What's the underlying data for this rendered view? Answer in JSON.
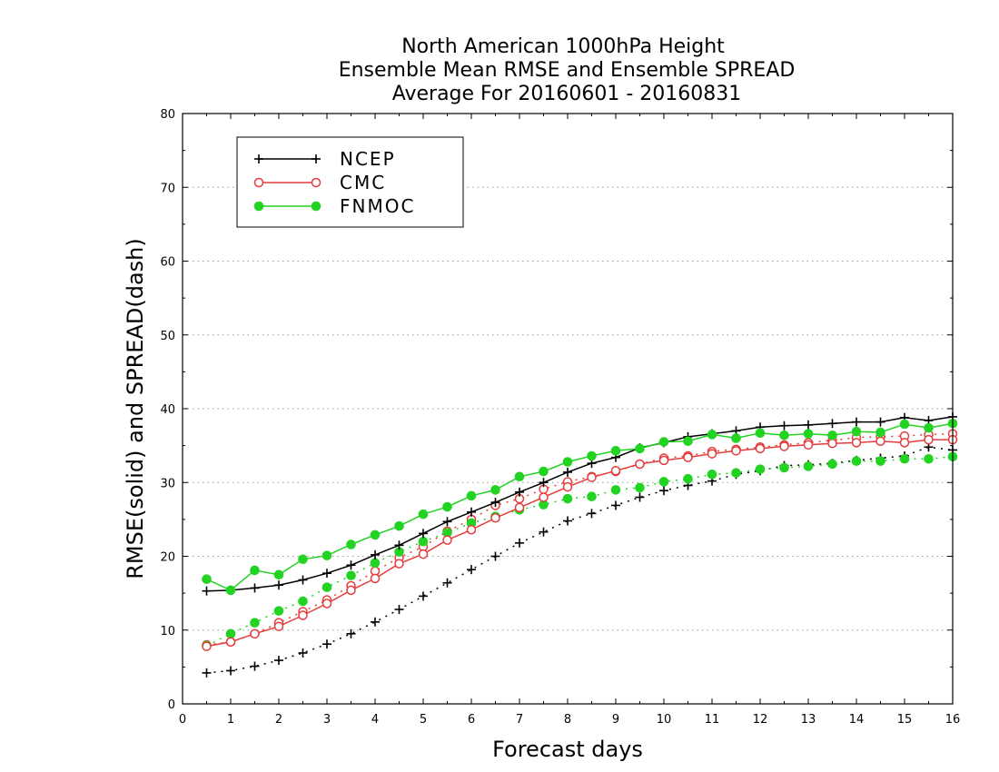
{
  "chart_data": {
    "type": "line",
    "title_lines": [
      "North American 1000hPa Height",
      "Ensemble Mean RMSE and Ensemble SPREAD",
      "Average For 20160601 - 20160831"
    ],
    "xlabel": "Forecast days",
    "ylabel": "RMSE(solid) and SPREAD(dash)",
    "xlim": [
      0,
      16
    ],
    "ylim": [
      0,
      80
    ],
    "x_ticks": [
      "0",
      "1",
      "2",
      "3",
      "4",
      "5",
      "6",
      "7",
      "8",
      "9",
      "10",
      "11",
      "12",
      "13",
      "14",
      "15",
      "16"
    ],
    "y_ticks": [
      "0",
      "10",
      "20",
      "30",
      "40",
      "50",
      "60",
      "70",
      "80"
    ],
    "grid": "horizontal dotted",
    "legend_position": "top-left",
    "x": [
      0.5,
      1,
      1.5,
      2,
      2.5,
      3,
      3.5,
      4,
      4.5,
      5,
      5.5,
      6,
      6.5,
      7,
      7.5,
      8,
      8.5,
      9,
      9.5,
      10,
      10.5,
      11,
      11.5,
      12,
      12.5,
      13,
      13.5,
      14,
      14.5,
      15,
      15.5,
      16
    ],
    "series": [
      {
        "name": "NCEP",
        "color": "#000000",
        "marker": "plus",
        "rmse": [
          15.3,
          15.4,
          15.7,
          16.1,
          16.8,
          17.7,
          18.8,
          20.2,
          21.5,
          23.1,
          24.7,
          26.0,
          27.3,
          28.7,
          30.0,
          31.4,
          32.6,
          33.4,
          34.7,
          35.4,
          36.2,
          36.6,
          37.0,
          37.5,
          37.7,
          37.8,
          38.0,
          38.2,
          38.2,
          38.8,
          38.4,
          38.9
        ],
        "spread": [
          4.2,
          4.5,
          5.1,
          5.9,
          6.9,
          8.1,
          9.5,
          11.1,
          12.8,
          14.6,
          16.4,
          18.2,
          20.0,
          21.8,
          23.3,
          24.8,
          25.8,
          26.9,
          28.0,
          28.9,
          29.6,
          30.2,
          31.1,
          31.6,
          32.3,
          32.4,
          32.6,
          33.0,
          33.3,
          33.6,
          34.8,
          34.4
        ]
      },
      {
        "name": "CMC",
        "color": "#e63c3c",
        "marker": "open-circle",
        "rmse": [
          7.8,
          8.4,
          9.5,
          10.5,
          12.0,
          13.6,
          15.4,
          17.0,
          19.0,
          20.3,
          22.2,
          23.6,
          25.2,
          26.6,
          28.0,
          29.4,
          30.7,
          31.6,
          32.5,
          33.0,
          33.4,
          33.9,
          34.3,
          34.6,
          34.9,
          35.1,
          35.3,
          35.4,
          35.6,
          35.4,
          35.8,
          35.8
        ],
        "spread": [
          8.0,
          8.4,
          9.5,
          11.0,
          12.5,
          14.1,
          16.0,
          18.0,
          19.8,
          21.3,
          23.4,
          25.0,
          26.9,
          27.8,
          29.1,
          30.1,
          30.8,
          31.5,
          32.5,
          33.3,
          33.6,
          34.2,
          34.5,
          34.8,
          35.1,
          35.4,
          35.7,
          36.1,
          36.2,
          36.3,
          36.5,
          36.6
        ]
      },
      {
        "name": "FNMOC",
        "color": "#22d322",
        "marker": "filled-circle",
        "rmse": [
          16.9,
          15.4,
          18.1,
          17.5,
          19.6,
          20.1,
          21.6,
          22.9,
          24.1,
          25.7,
          26.7,
          28.2,
          29.0,
          30.8,
          31.5,
          32.8,
          33.6,
          34.3,
          34.6,
          35.5,
          35.6,
          36.5,
          36.0,
          36.7,
          36.4,
          36.6,
          36.4,
          36.9,
          36.8,
          37.9,
          37.4,
          38.0
        ],
        "spread": [
          7.9,
          9.5,
          11.0,
          12.6,
          13.9,
          15.8,
          17.4,
          19.1,
          20.6,
          22.0,
          23.2,
          24.5,
          25.4,
          26.3,
          27.0,
          27.8,
          28.1,
          29.0,
          29.3,
          30.1,
          30.5,
          31.1,
          31.3,
          31.8,
          32.0,
          32.2,
          32.5,
          32.9,
          32.9,
          33.2,
          33.2,
          33.5
        ]
      }
    ]
  }
}
